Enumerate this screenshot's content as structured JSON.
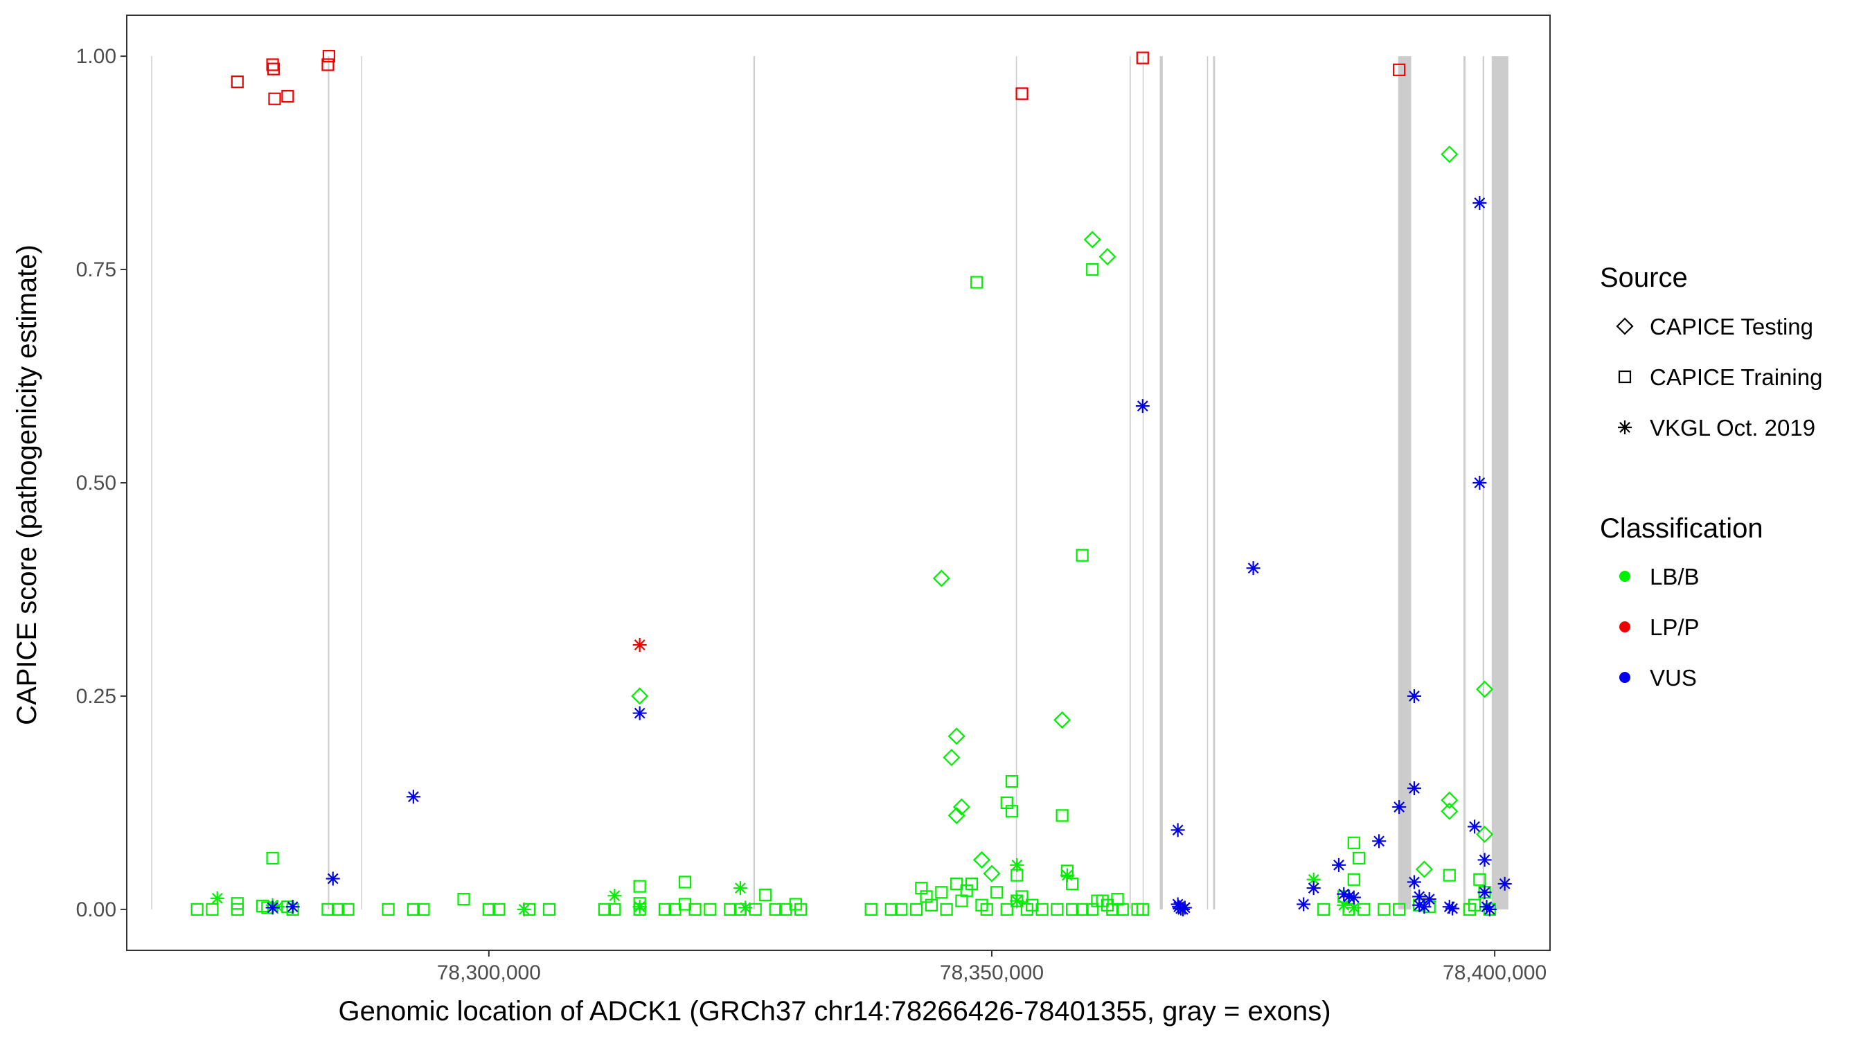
{
  "chart_data": {
    "type": "scatter",
    "title": "",
    "xlabel": "Genomic location of ADCK1 (GRCh37 chr14:78266426-78401355, gray = exons)",
    "ylabel": "CAPICE score (pathogenicity estimate)",
    "xlim": [
      78264000,
      78405500
    ],
    "ylim": [
      -0.048,
      1.048
    ],
    "x_ticks": [
      78300000,
      78350000,
      78400000
    ],
    "x_tick_labels": [
      "78,300,000",
      "78,350,000",
      "78,400,000"
    ],
    "y_ticks": [
      0,
      0.25,
      0.5,
      0.75,
      1
    ],
    "y_tick_labels": [
      "0.00",
      "0.25",
      "0.50",
      "0.75",
      "1.00"
    ],
    "grid": false,
    "legend_position": "right",
    "exons": [
      {
        "start": 78266426,
        "end": 78266520
      },
      {
        "start": 78284000,
        "end": 78284140
      },
      {
        "start": 78287300,
        "end": 78287380
      },
      {
        "start": 78326300,
        "end": 78326460
      },
      {
        "start": 78352400,
        "end": 78352500
      },
      {
        "start": 78363700,
        "end": 78363820
      },
      {
        "start": 78365000,
        "end": 78365080
      },
      {
        "start": 78366700,
        "end": 78367000
      },
      {
        "start": 78371400,
        "end": 78371480
      },
      {
        "start": 78372000,
        "end": 78372200
      },
      {
        "start": 78390400,
        "end": 78391700
      },
      {
        "start": 78396900,
        "end": 78397100
      },
      {
        "start": 78398800,
        "end": 78398950
      },
      {
        "start": 78399700,
        "end": 78401355
      }
    ],
    "legends": [
      {
        "title": "Source",
        "type": "shape",
        "entries": [
          {
            "label": "CAPICE Testing",
            "shape": "diamond"
          },
          {
            "label": "CAPICE Training",
            "shape": "square"
          },
          {
            "label": "VKGL Oct. 2019",
            "shape": "asterisk"
          }
        ]
      },
      {
        "title": "Classification",
        "type": "color",
        "entries": [
          {
            "label": "LB/B",
            "color": "#00ee00"
          },
          {
            "label": "LP/P",
            "color": "#ee0000"
          },
          {
            "label": "VUS",
            "color": "#0000ee"
          }
        ]
      }
    ],
    "colors": {
      "LB/B": "#00ee00",
      "LP/P": "#ee0000",
      "VUS": "#0000ee",
      "exon": "#cccccc"
    },
    "series": [
      {
        "source": "CAPICE Training",
        "classification": "LP/P",
        "points": [
          [
            78275000,
            0.97
          ],
          [
            78278500,
            0.99
          ],
          [
            78278600,
            0.985
          ],
          [
            78278700,
            0.95
          ],
          [
            78280000,
            0.953
          ],
          [
            78284000,
            0.99
          ],
          [
            78284100,
            1.0
          ],
          [
            78353000,
            0.956
          ],
          [
            78365000,
            0.998
          ],
          [
            78390500,
            0.984
          ]
        ]
      },
      {
        "source": "CAPICE Training",
        "classification": "LB/B",
        "points": [
          [
            78271000,
            0
          ],
          [
            78272500,
            0
          ],
          [
            78275000,
            0.007
          ],
          [
            78275000,
            0
          ],
          [
            78277500,
            0.004
          ],
          [
            78278000,
            0.002
          ],
          [
            78278500,
            0.06
          ],
          [
            78280000,
            0.003
          ],
          [
            78280500,
            0
          ],
          [
            78284000,
            0
          ],
          [
            78285000,
            0
          ],
          [
            78286000,
            0
          ],
          [
            78290000,
            0
          ],
          [
            78292500,
            0
          ],
          [
            78293500,
            0
          ],
          [
            78297500,
            0.012
          ],
          [
            78300000,
            0
          ],
          [
            78301000,
            0
          ],
          [
            78304000,
            0
          ],
          [
            78306000,
            0
          ],
          [
            78311500,
            0
          ],
          [
            78312500,
            0
          ],
          [
            78315000,
            0.027
          ],
          [
            78315000,
            0.007
          ],
          [
            78315000,
            0
          ],
          [
            78317500,
            0
          ],
          [
            78318500,
            0
          ],
          [
            78319500,
            0.032
          ],
          [
            78319500,
            0.006
          ],
          [
            78320500,
            0
          ],
          [
            78322000,
            0
          ],
          [
            78324000,
            0
          ],
          [
            78325000,
            0
          ],
          [
            78326500,
            0
          ],
          [
            78327500,
            0.017
          ],
          [
            78328500,
            0
          ],
          [
            78329500,
            0
          ],
          [
            78330500,
            0.006
          ],
          [
            78331000,
            0
          ],
          [
            78338000,
            0
          ],
          [
            78340000,
            0
          ],
          [
            78341000,
            0
          ],
          [
            78342500,
            0
          ],
          [
            78343000,
            0.025
          ],
          [
            78343500,
            0.015
          ],
          [
            78344000,
            0.005
          ],
          [
            78345000,
            0.02
          ],
          [
            78345500,
            0
          ],
          [
            78346500,
            0.03
          ],
          [
            78347000,
            0.01
          ],
          [
            78348000,
            0.03
          ],
          [
            78349000,
            0.005
          ],
          [
            78349500,
            0
          ],
          [
            78350500,
            0.02
          ],
          [
            78351500,
            0
          ],
          [
            78352500,
            0.01
          ],
          [
            78353500,
            0
          ],
          [
            78347500,
            0.022
          ],
          [
            78348500,
            0.735
          ],
          [
            78352000,
            0.15
          ],
          [
            78351500,
            0.125
          ],
          [
            78352000,
            0.115
          ],
          [
            78352500,
            0.04
          ],
          [
            78353000,
            0.015
          ],
          [
            78354000,
            0.005
          ],
          [
            78355000,
            0
          ],
          [
            78356500,
            0
          ],
          [
            78358000,
            0
          ],
          [
            78359000,
            0
          ],
          [
            78360000,
            0
          ],
          [
            78361000,
            0.01
          ],
          [
            78362000,
            0
          ],
          [
            78363000,
            0
          ],
          [
            78357000,
            0.11
          ],
          [
            78357500,
            0.045
          ],
          [
            78358000,
            0.03
          ],
          [
            78359000,
            0.415
          ],
          [
            78360000,
            0.75
          ],
          [
            78360500,
            0.01
          ],
          [
            78361500,
            0.005
          ],
          [
            78362500,
            0.012
          ],
          [
            78364500,
            0
          ],
          [
            78365000,
            0
          ],
          [
            78383000,
            0
          ],
          [
            78385000,
            0.015
          ],
          [
            78386000,
            0.078
          ],
          [
            78386500,
            0.06
          ],
          [
            78386000,
            0.035
          ],
          [
            78385500,
            0
          ],
          [
            78387000,
            0
          ],
          [
            78389000,
            0
          ],
          [
            78390500,
            0
          ],
          [
            78392500,
            0.005
          ],
          [
            78393500,
            0.003
          ],
          [
            78395500,
            0.04
          ],
          [
            78397500,
            0
          ],
          [
            78398000,
            0.005
          ],
          [
            78398500,
            0.035
          ],
          [
            78399000,
            0.02
          ],
          [
            78399500,
            0
          ]
        ]
      },
      {
        "source": "CAPICE Testing",
        "classification": "LB/B",
        "points": [
          [
            78315000,
            0.25
          ],
          [
            78345000,
            0.388
          ],
          [
            78346500,
            0.203
          ],
          [
            78346000,
            0.178
          ],
          [
            78347000,
            0.12
          ],
          [
            78346500,
            0.11
          ],
          [
            78349000,
            0.058
          ],
          [
            78350000,
            0.042
          ],
          [
            78357000,
            0.222
          ],
          [
            78360000,
            0.785
          ],
          [
            78361500,
            0.765
          ],
          [
            78393000,
            0.047
          ],
          [
            78395500,
            0.885
          ],
          [
            78395500,
            0.128
          ],
          [
            78395500,
            0.115
          ],
          [
            78399000,
            0.258
          ],
          [
            78399000,
            0.088
          ]
        ]
      },
      {
        "source": "VKGL Oct. 2019",
        "classification": "LB/B",
        "points": [
          [
            78273000,
            0.013
          ],
          [
            78278500,
            0.005
          ],
          [
            78279000,
            0.003
          ],
          [
            78303500,
            0
          ],
          [
            78312500,
            0.016
          ],
          [
            78315000,
            0.003
          ],
          [
            78325000,
            0.025
          ],
          [
            78325500,
            0.002
          ],
          [
            78352500,
            0.052
          ],
          [
            78352500,
            0.01
          ],
          [
            78357500,
            0.04
          ],
          [
            78382000,
            0.035
          ],
          [
            78385000,
            0.005
          ],
          [
            78386000,
            0.002
          ]
        ]
      },
      {
        "source": "VKGL Oct. 2019",
        "classification": "LP/P",
        "points": [
          [
            78315000,
            0.31
          ]
        ]
      },
      {
        "source": "VKGL Oct. 2019",
        "classification": "VUS",
        "points": [
          [
            78278500,
            0.002
          ],
          [
            78280500,
            0.003
          ],
          [
            78284500,
            0.036
          ],
          [
            78292500,
            0.132
          ],
          [
            78315000,
            0.23
          ],
          [
            78365000,
            0.59
          ],
          [
            78368500,
            0.093
          ],
          [
            78368500,
            0.006
          ],
          [
            78368600,
            0.003
          ],
          [
            78368800,
            0.001
          ],
          [
            78369000,
            0
          ],
          [
            78369200,
            0.002
          ],
          [
            78376000,
            0.4
          ],
          [
            78381000,
            0.006
          ],
          [
            78382000,
            0.025
          ],
          [
            78384500,
            0.052
          ],
          [
            78385000,
            0.018
          ],
          [
            78385500,
            0.015
          ],
          [
            78386000,
            0.014
          ],
          [
            78388500,
            0.08
          ],
          [
            78390500,
            0.12
          ],
          [
            78392000,
            0.25
          ],
          [
            78392000,
            0.142
          ],
          [
            78392000,
            0.032
          ],
          [
            78392500,
            0.015
          ],
          [
            78392500,
            0.005
          ],
          [
            78393000,
            0.003
          ],
          [
            78393500,
            0.012
          ],
          [
            78395500,
            0.003
          ],
          [
            78395800,
            0.001
          ],
          [
            78398000,
            0.097
          ],
          [
            78398500,
            0.828
          ],
          [
            78398500,
            0.5
          ],
          [
            78399000,
            0.058
          ],
          [
            78399000,
            0.02
          ],
          [
            78399200,
            0.003
          ],
          [
            78399500,
            0
          ],
          [
            78401000,
            0.03
          ]
        ]
      }
    ]
  }
}
